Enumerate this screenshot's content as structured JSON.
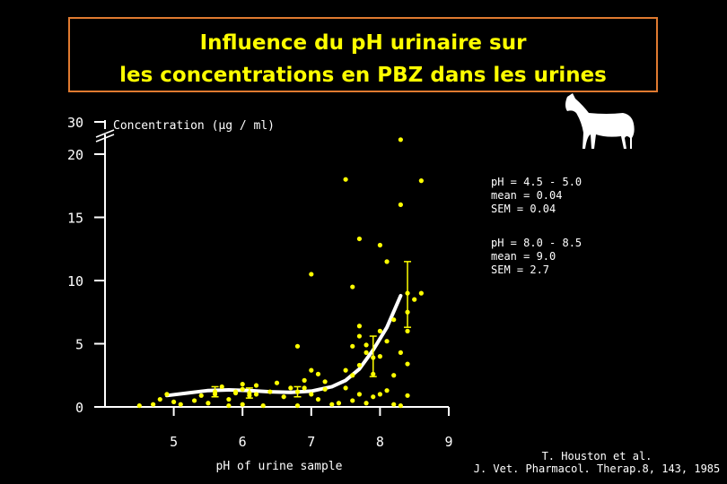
{
  "title": {
    "line1": "Influence du pH urinaire sur",
    "line2": "les concentrations en PBZ dans les urines"
  },
  "icon": "horse-icon",
  "colors": {
    "background": "#000000",
    "data": "#ffff00",
    "axis": "#ffffff",
    "frame": "#e07a30"
  },
  "chart_data": {
    "type": "scatter",
    "xlabel": "pH of urine sample",
    "ylabel": "Concentration (µg / ml)",
    "xlim": [
      4.0,
      9.0
    ],
    "ylim": [
      0,
      30
    ],
    "y_axis_break": [
      20,
      30
    ],
    "grid": false,
    "xticks": [
      5,
      6,
      7,
      8,
      9
    ],
    "yticks": [
      0,
      5,
      10,
      15,
      20,
      30
    ],
    "points": [
      [
        4.5,
        0.1
      ],
      [
        4.7,
        0.2
      ],
      [
        4.8,
        0.6
      ],
      [
        4.9,
        1.0
      ],
      [
        5.0,
        0.4
      ],
      [
        5.1,
        0.2
      ],
      [
        5.3,
        0.5
      ],
      [
        5.4,
        0.9
      ],
      [
        5.5,
        0.3
      ],
      [
        5.6,
        1.0
      ],
      [
        5.7,
        1.6
      ],
      [
        5.8,
        0.1
      ],
      [
        5.9,
        1.2
      ],
      [
        5.8,
        0.6
      ],
      [
        5.9,
        1.1
      ],
      [
        6.0,
        1.4
      ],
      [
        6.1,
        0.9
      ],
      [
        6.0,
        0.2
      ],
      [
        6.2,
        1.0
      ],
      [
        6.3,
        0.1
      ],
      [
        6.4,
        1.2
      ],
      [
        6.6,
        0.8
      ],
      [
        6.7,
        1.5
      ],
      [
        6.8,
        0.1
      ],
      [
        6.9,
        2.1
      ],
      [
        7.0,
        1.0
      ],
      [
        7.1,
        0.6
      ],
      [
        7.2,
        1.4
      ],
      [
        7.3,
        0.2
      ],
      [
        7.4,
        0.3
      ],
      [
        7.5,
        1.5
      ],
      [
        7.6,
        0.5
      ],
      [
        7.7,
        1.0
      ],
      [
        7.8,
        0.3
      ],
      [
        7.9,
        0.8
      ],
      [
        8.0,
        1.0
      ],
      [
        8.1,
        1.3
      ],
      [
        8.2,
        0.2
      ],
      [
        8.3,
        0.1
      ],
      [
        8.4,
        0.9
      ],
      [
        6.0,
        1.8
      ],
      [
        6.2,
        1.7
      ],
      [
        6.5,
        1.9
      ],
      [
        6.9,
        1.5
      ],
      [
        7.0,
        2.9
      ],
      [
        7.1,
        2.6
      ],
      [
        7.2,
        2.0
      ],
      [
        7.5,
        2.9
      ],
      [
        7.6,
        2.5
      ],
      [
        7.7,
        3.3
      ],
      [
        7.8,
        4.3
      ],
      [
        7.9,
        2.6
      ],
      [
        8.0,
        4.0
      ],
      [
        8.2,
        2.5
      ],
      [
        8.4,
        3.4
      ],
      [
        6.8,
        4.8
      ],
      [
        7.6,
        4.8
      ],
      [
        7.7,
        5.6
      ],
      [
        7.8,
        4.9
      ],
      [
        8.0,
        6.0
      ],
      [
        8.1,
        5.2
      ],
      [
        8.3,
        4.3
      ],
      [
        8.4,
        6.0
      ],
      [
        7.7,
        6.4
      ],
      [
        8.2,
        6.9
      ],
      [
        8.4,
        7.5
      ],
      [
        8.5,
        8.5
      ],
      [
        8.6,
        9.0
      ],
      [
        7.0,
        10.5
      ],
      [
        7.6,
        9.5
      ],
      [
        8.1,
        11.5
      ],
      [
        8.0,
        12.8
      ],
      [
        7.7,
        13.3
      ],
      [
        8.3,
        16.0
      ],
      [
        7.5,
        18.0
      ],
      [
        8.6,
        17.9
      ],
      [
        8.3,
        24.5
      ]
    ],
    "curve": {
      "x": [
        4.9,
        5.2,
        5.5,
        5.8,
        6.1,
        6.4,
        6.7,
        7.0,
        7.3,
        7.5,
        7.7,
        7.9,
        8.1,
        8.3
      ],
      "y": [
        0.9,
        1.1,
        1.3,
        1.35,
        1.3,
        1.2,
        1.15,
        1.25,
        1.6,
        2.1,
        3.0,
        4.5,
        6.3,
        8.8
      ]
    },
    "error_bars": [
      {
        "x": 5.6,
        "y": 1.2,
        "low": 0.8,
        "high": 1.6
      },
      {
        "x": 6.1,
        "y": 1.1,
        "low": 0.7,
        "high": 1.5
      },
      {
        "x": 6.8,
        "y": 1.2,
        "low": 0.8,
        "high": 1.6
      },
      {
        "x": 7.9,
        "y": 3.9,
        "low": 2.4,
        "high": 5.6
      },
      {
        "x": 8.4,
        "y": 9.0,
        "low": 6.3,
        "high": 11.5
      }
    ],
    "annotations": [
      {
        "lines": [
          "pH = 4.5 - 5.0",
          "mean = 0.04",
          "SEM = 0.04"
        ]
      },
      {
        "lines": [
          "pH = 8.0 -  8.5",
          "mean = 9.0",
          "SEM = 2.7"
        ]
      }
    ]
  },
  "credit": {
    "line1": "T. Houston et al.",
    "line2": "J. Vet. Pharmacol. Therap.8, 143, 1985"
  }
}
